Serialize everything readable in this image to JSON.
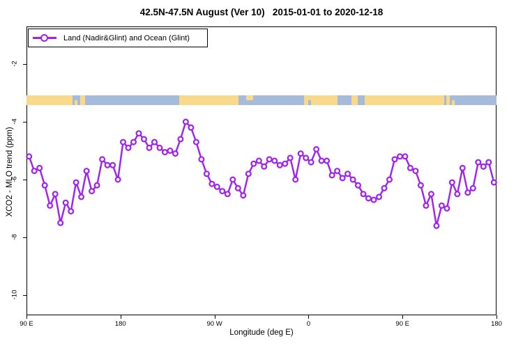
{
  "title": "42.5N-47.5N August (Ver 10)   2015-01-01 to 2020-12-18",
  "legend": {
    "label": "Land (Nadir&Glint) and Ocean (Glint)"
  },
  "colors": {
    "series": "#A020F0",
    "land": "#FAD98B",
    "ocean": "#A6BBDC",
    "axis": "#000000"
  },
  "axes": {
    "x": {
      "label": "Longitude (deg E)",
      "range_plot_deg": [
        90,
        540
      ],
      "ticks": [
        {
          "deg": 90,
          "label": "90 E"
        },
        {
          "deg": 180,
          "label": "180"
        },
        {
          "deg": 270,
          "label": "90 W"
        },
        {
          "deg": 360,
          "label": "0"
        },
        {
          "deg": 450,
          "label": "90 E"
        },
        {
          "deg": 540,
          "label": "180"
        }
      ]
    },
    "y": {
      "label": "XCO2 - MLO trend (ppm)",
      "range": [
        -10.7,
        -0.7
      ],
      "ticks": [
        -2,
        -4,
        -6,
        -8,
        -10
      ]
    }
  },
  "map_strip": {
    "description": "land-ocean mask band at 42.5N-47.5N",
    "center_value": -3.25,
    "base": "ocean",
    "land_segments": [
      {
        "from": 90,
        "to": 134,
        "h": "full"
      },
      {
        "from": 136,
        "to": 139,
        "h": "bot"
      },
      {
        "from": 141.5,
        "to": 146,
        "h": "full"
      },
      {
        "from": 236,
        "to": 293,
        "h": "full"
      },
      {
        "from": 300,
        "to": 307,
        "h": "top"
      },
      {
        "from": 356,
        "to": 490,
        "h": "full"
      },
      {
        "from": 492,
        "to": 495,
        "h": "full"
      },
      {
        "from": 497,
        "to": 500,
        "h": "bot"
      }
    ],
    "water_patches": [
      {
        "from": 360,
        "to": 362.5,
        "h": "bot"
      },
      {
        "from": 388,
        "to": 401,
        "h": "full"
      },
      {
        "from": 407,
        "to": 414,
        "h": "full"
      }
    ]
  },
  "chart_data": {
    "type": "line",
    "title": "42.5N-47.5N August (Ver 10)   2015-01-01 to 2020-12-18",
    "xlabel": "Longitude (deg E)",
    "ylabel": "XCO2 - MLO trend (ppm)",
    "x_axis_wraps": "90E -> 180 -> 90W -> 0 -> 90E -> 180 (450 deg span)",
    "xlim_plot_deg": [
      90,
      540
    ],
    "ylim": [
      -10.7,
      -0.7
    ],
    "grid": false,
    "legend_position": "top-left",
    "series": [
      {
        "name": "Land (Nadir&Glint) and Ocean (Glint)",
        "marker": "open-circle",
        "x_plot_deg": [
          92.5,
          97.5,
          102.5,
          107.5,
          112.5,
          117.5,
          122.5,
          127.5,
          132.5,
          137.5,
          142.5,
          147.5,
          152.5,
          157.5,
          162.5,
          167.5,
          172.5,
          177.5,
          182.5,
          187.5,
          192.5,
          197.5,
          202.5,
          207.5,
          212.5,
          217.5,
          222.5,
          227.5,
          232.5,
          237.5,
          242.5,
          247.5,
          252.5,
          257.5,
          262.5,
          267.5,
          272.5,
          277.5,
          282.5,
          287.5,
          292.5,
          297.5,
          302.5,
          307.5,
          312.5,
          317.5,
          322.5,
          327.5,
          332.5,
          337.5,
          342.5,
          347.5,
          352.5,
          357.5,
          362.5,
          367.5,
          372.5,
          377.5,
          382.5,
          387.5,
          392.5,
          397.5,
          402.5,
          407.5,
          412.5,
          417.5,
          422.5,
          427.5,
          432.5,
          437.5,
          442.5,
          447.5,
          452.5,
          457.5,
          462.5,
          467.5,
          472.5,
          477.5,
          482.5,
          487.5,
          492.5,
          497.5,
          502.5,
          507.5,
          512.5,
          517.5,
          522.5,
          527.5,
          532.5,
          537.5
        ],
        "values": [
          -5.2,
          -5.7,
          -5.6,
          -6.2,
          -6.9,
          -6.5,
          -7.5,
          -6.8,
          -7.1,
          -6.1,
          -6.6,
          -5.7,
          -6.4,
          -6.2,
          -5.3,
          -5.5,
          -5.5,
          -6.0,
          -4.7,
          -4.9,
          -4.7,
          -4.4,
          -4.6,
          -4.9,
          -4.7,
          -4.9,
          -5.05,
          -5.0,
          -5.1,
          -4.6,
          -4.0,
          -4.2,
          -4.7,
          -5.3,
          -5.8,
          -6.15,
          -6.25,
          -6.4,
          -6.5,
          -6.0,
          -6.3,
          -6.55,
          -5.8,
          -5.45,
          -5.35,
          -5.55,
          -5.3,
          -5.35,
          -5.5,
          -5.45,
          -5.25,
          -6.0,
          -5.1,
          -5.25,
          -5.4,
          -4.95,
          -5.35,
          -5.35,
          -5.85,
          -5.7,
          -5.95,
          -5.8,
          -6.0,
          -6.2,
          -6.5,
          -6.65,
          -6.7,
          -6.6,
          -6.3,
          -6.0,
          -5.3,
          -5.2,
          -5.2,
          -5.6,
          -5.7,
          -6.2,
          -6.9,
          -6.5,
          -7.6,
          -6.9,
          -7.0,
          -6.1,
          -6.5,
          -5.6,
          -6.45,
          -6.3,
          -5.4,
          -5.55,
          -5.4,
          -6.1
        ]
      }
    ]
  }
}
